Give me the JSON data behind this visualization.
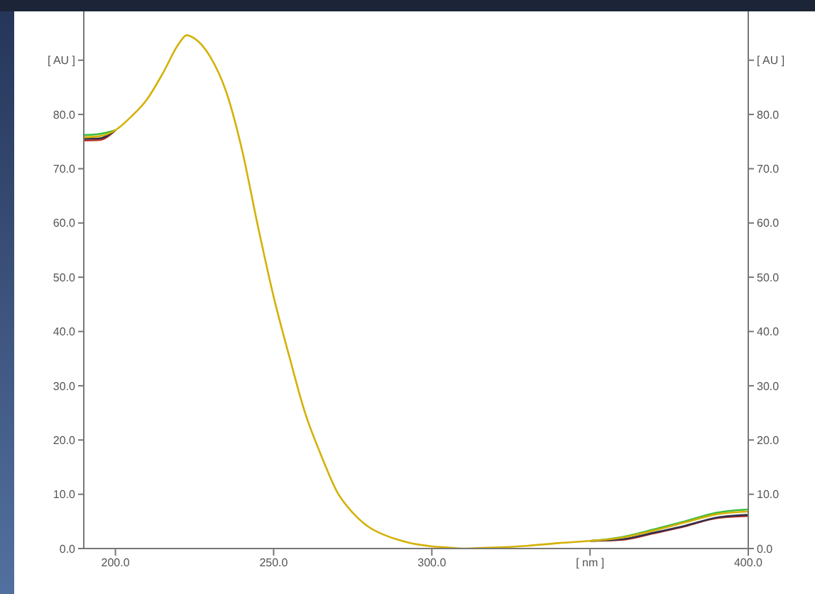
{
  "chart_data": {
    "type": "line",
    "marker": "none",
    "x": [
      190,
      195,
      200,
      205,
      210,
      215,
      220,
      222.5,
      225,
      230,
      235,
      240,
      245,
      250,
      255,
      260,
      265,
      270,
      275,
      280,
      285,
      290,
      295,
      300,
      305,
      310,
      315,
      320,
      330,
      340,
      350,
      360,
      370,
      380,
      390,
      400
    ],
    "series": [
      {
        "color": "#c0302a",
        "values": [
          75.2,
          75.3,
          77.1,
          null,
          null,
          null,
          null,
          null,
          null,
          null,
          null,
          null,
          null,
          null,
          null,
          null,
          null,
          null,
          null,
          null,
          null,
          null,
          null,
          null,
          null,
          null,
          null,
          null,
          null,
          null,
          1.4,
          1.6,
          2.8,
          4.1,
          5.6,
          6.0
        ]
      },
      {
        "color": "#30304a",
        "values": [
          75.5,
          75.6,
          77.1,
          null,
          null,
          null,
          null,
          null,
          null,
          null,
          null,
          null,
          null,
          null,
          null,
          null,
          null,
          null,
          null,
          null,
          null,
          null,
          null,
          null,
          null,
          null,
          null,
          null,
          null,
          null,
          1.4,
          1.7,
          2.9,
          4.2,
          5.7,
          6.2
        ]
      },
      {
        "color": "#3cbc3c",
        "values": [
          76.2,
          76.4,
          77.1,
          null,
          null,
          null,
          null,
          null,
          null,
          null,
          null,
          null,
          null,
          null,
          null,
          null,
          null,
          null,
          null,
          null,
          null,
          null,
          null,
          null,
          null,
          null,
          null,
          null,
          null,
          null,
          1.4,
          2.1,
          3.5,
          5.0,
          6.6,
          7.2
        ]
      },
      {
        "color": "#d4b106",
        "values": [
          75.8,
          76.0,
          77.1,
          79.6,
          82.8,
          87.6,
          93.0,
          94.6,
          94.0,
          90.6,
          84.2,
          73.5,
          59.5,
          46.4,
          35.3,
          24.9,
          17.2,
          10.5,
          6.6,
          4.0,
          2.5,
          1.5,
          0.8,
          0.4,
          0.2,
          0.0,
          0.1,
          0.2,
          0.5,
          1.0,
          1.4,
          2.0,
          3.3,
          4.8,
          6.3,
          6.8
        ]
      }
    ],
    "xlim": [
      190,
      400
    ],
    "xticks": [
      {
        "value": 200,
        "label": "200.0"
      },
      {
        "value": 250,
        "label": "250.0"
      },
      {
        "value": 300,
        "label": "300.0"
      },
      {
        "value": 350,
        "label": "[ nm ]"
      },
      {
        "value": 400,
        "label": "400.0"
      }
    ],
    "ylim": [
      0,
      99
    ],
    "yticks": [
      {
        "value": 0,
        "label": "0.0"
      },
      {
        "value": 10,
        "label": "10.0"
      },
      {
        "value": 20,
        "label": "20.0"
      },
      {
        "value": 30,
        "label": "30.0"
      },
      {
        "value": 40,
        "label": "40.0"
      },
      {
        "value": 50,
        "label": "50.0"
      },
      {
        "value": 60,
        "label": "60.0"
      },
      {
        "value": 70,
        "label": "70.0"
      },
      {
        "value": 80,
        "label": "80.0"
      },
      {
        "value": 90,
        "label": "[ AU ]"
      }
    ],
    "y2lim": [
      0,
      99
    ],
    "y2ticks": [
      {
        "value": 0,
        "label": "0.0"
      },
      {
        "value": 10,
        "label": "10.0"
      },
      {
        "value": 20,
        "label": "20.0"
      },
      {
        "value": 30,
        "label": "30.0"
      },
      {
        "value": 40,
        "label": "40.0"
      },
      {
        "value": 50,
        "label": "50.0"
      },
      {
        "value": 60,
        "label": "60.0"
      },
      {
        "value": 70,
        "label": "70.0"
      },
      {
        "value": 80,
        "label": "80.0"
      },
      {
        "value": 90,
        "label": "[ AU ]"
      }
    ]
  }
}
